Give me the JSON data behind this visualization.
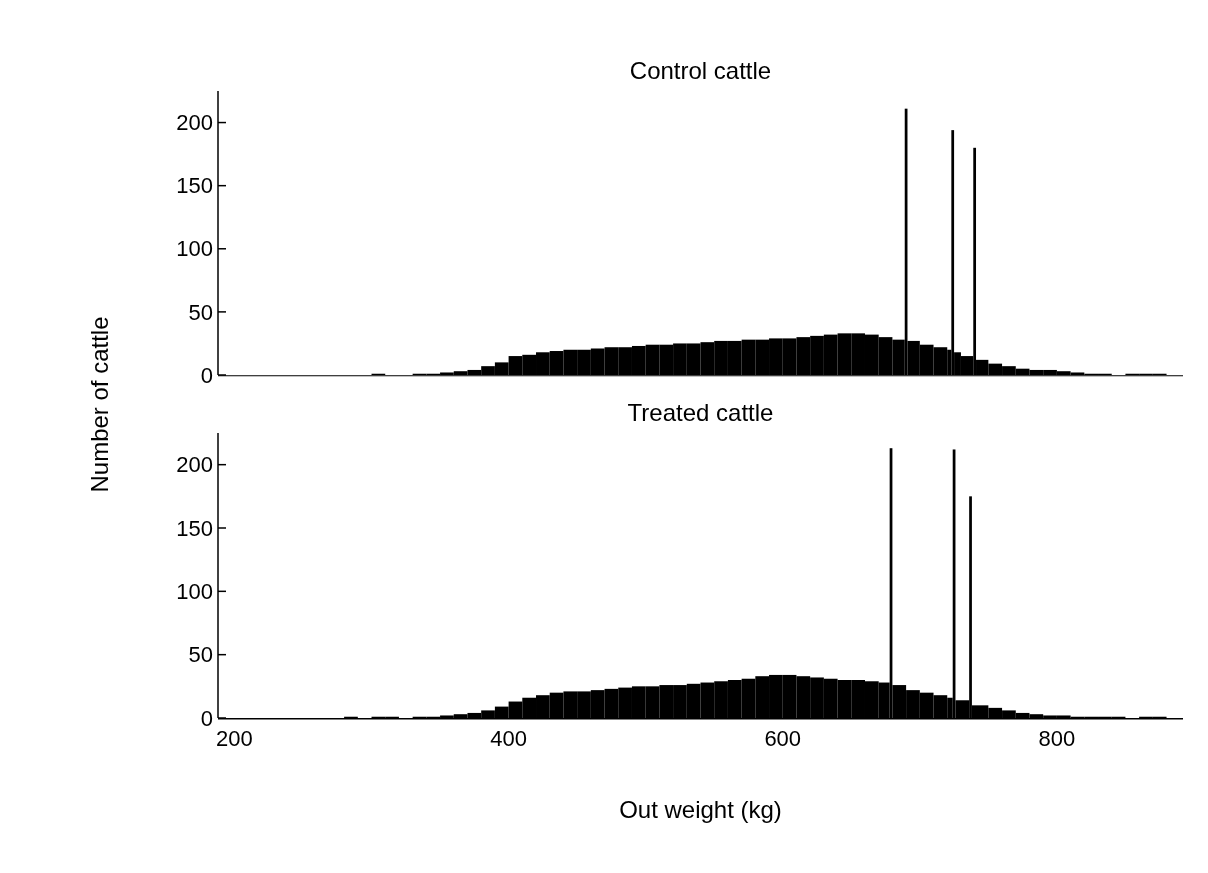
{
  "chart_data": [
    {
      "type": "histogram",
      "title": "Control cattle",
      "ylabel": "Number of cattle",
      "color": "#000000",
      "xlim": [
        188,
        892
      ],
      "ylim": [
        0,
        225
      ],
      "yticks": [
        0,
        50,
        100,
        150,
        200
      ],
      "tick_labels": "y",
      "grid": false,
      "bins": [
        300,
        310,
        330,
        340,
        350,
        360,
        370,
        380,
        390,
        400,
        410,
        420,
        430,
        440,
        450,
        460,
        470,
        480,
        490,
        500,
        510,
        520,
        530,
        540,
        550,
        560,
        570,
        580,
        590,
        600,
        610,
        620,
        630,
        640,
        650,
        660,
        670,
        680,
        689,
        691,
        700,
        710,
        720,
        723,
        725,
        730,
        739,
        741,
        750,
        760,
        770,
        780,
        790,
        800,
        810,
        820,
        830,
        840,
        850,
        860,
        870,
        880
      ],
      "values": [
        1,
        0,
        1,
        1,
        2,
        3,
        4,
        7,
        10,
        15,
        16,
        18,
        19,
        20,
        20,
        21,
        22,
        22,
        23,
        24,
        24,
        25,
        25,
        26,
        27,
        27,
        28,
        28,
        29,
        29,
        30,
        31,
        32,
        33,
        33,
        32,
        30,
        28,
        211,
        27,
        24,
        22,
        20,
        194,
        18,
        15,
        180,
        12,
        9,
        7,
        5,
        4,
        4,
        3,
        2,
        1,
        1,
        0,
        1,
        1,
        1
      ]
    },
    {
      "type": "histogram",
      "title": "Treated cattle",
      "xlabel": "Out weight (kg)",
      "color": "#000000",
      "xlim": [
        188,
        892
      ],
      "xticks": [
        200,
        400,
        600,
        800
      ],
      "ylim": [
        0,
        225
      ],
      "yticks": [
        0,
        50,
        100,
        150,
        200
      ],
      "grid": false,
      "bins": [
        280,
        290,
        300,
        310,
        320,
        330,
        340,
        350,
        360,
        370,
        380,
        390,
        400,
        410,
        420,
        430,
        440,
        450,
        460,
        470,
        480,
        490,
        500,
        510,
        520,
        530,
        540,
        550,
        560,
        570,
        580,
        590,
        600,
        610,
        620,
        630,
        640,
        650,
        660,
        670,
        678,
        680,
        690,
        700,
        710,
        720,
        724,
        726,
        736,
        738,
        750,
        760,
        770,
        780,
        790,
        800,
        810,
        820,
        830,
        840,
        850,
        860,
        870,
        880
      ],
      "values": [
        1,
        0,
        1,
        1,
        0,
        1,
        1,
        2,
        3,
        4,
        6,
        9,
        13,
        16,
        18,
        20,
        21,
        21,
        22,
        23,
        24,
        25,
        25,
        26,
        26,
        27,
        28,
        29,
        30,
        31,
        33,
        34,
        34,
        33,
        32,
        31,
        30,
        30,
        29,
        28,
        213,
        26,
        22,
        20,
        18,
        16,
        212,
        14,
        175,
        10,
        8,
        6,
        4,
        3,
        2,
        2,
        1,
        1,
        1,
        1,
        0,
        1,
        1
      ]
    }
  ]
}
